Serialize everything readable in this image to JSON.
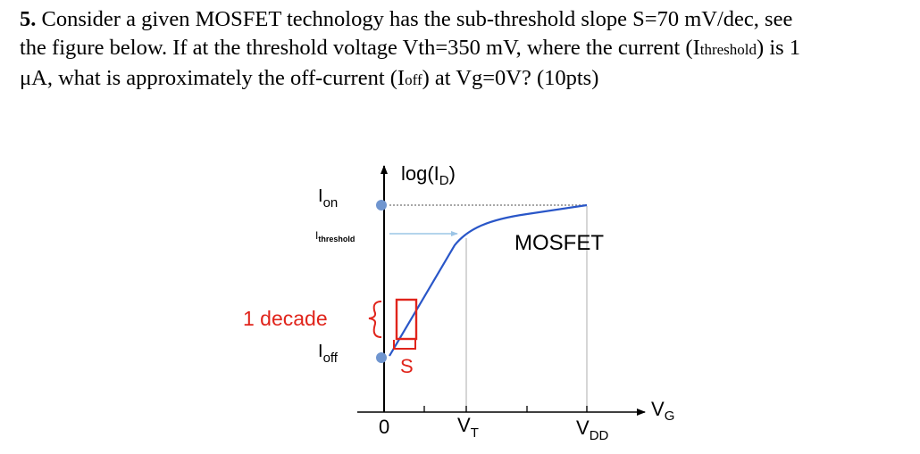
{
  "question": {
    "number": "5.",
    "line1": "Consider a given MOSFET technology has the sub-threshold slope S=70 mV/dec, see",
    "line2a": "the figure below. If at the threshold voltage Vth=350 mV, where the current (I",
    "line2_sub": "threshold",
    "line2b": ") is 1",
    "line3a": "μA, what is approximately the off-current (I",
    "line3_sub": "off",
    "line3b": ") at Vg=0V? (10pts)"
  },
  "figure": {
    "y_axis_label": "log(I",
    "y_axis_label_sub": "D",
    "y_axis_label_close": ")",
    "i_on_main": "I",
    "i_on_sub": "on",
    "i_threshold_main": "I",
    "i_threshold_sub": "threshold",
    "i_off_main": "I",
    "i_off_sub": "off",
    "one_decade": "1 decade",
    "slope_label": "S",
    "curve_label": "MOSFET",
    "x_origin": "0",
    "vt_main": "V",
    "vt_sub": "T",
    "vdd_main": "V",
    "vdd_sub": "DD",
    "vg_main": "V",
    "vg_sub": "G",
    "colors": {
      "curve": "#2956c8",
      "annotation_red": "#e0241b",
      "marker": "#6f95cf",
      "threshold_line": "#9cc5e6",
      "guide_gray": "#c8c8c8",
      "dotted": "#8a8a8a"
    }
  }
}
